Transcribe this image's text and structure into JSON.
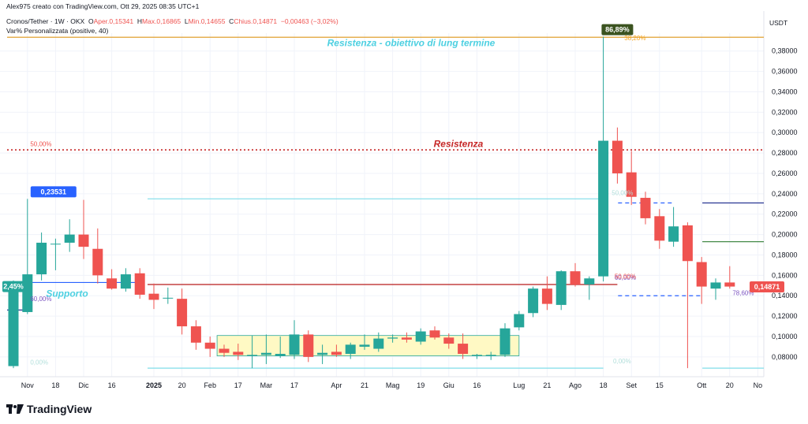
{
  "header": {
    "author": "Alex975 creato con TradingView.com, Ott 29, 2025 08:35 UTC+1",
    "symbol": "Cronos/Tether · 1W · OKX",
    "open_label": "O",
    "open_value": "Aper.0,15341",
    "high_label": "H",
    "high_value": "Max.0,16865",
    "low_label": "L",
    "low_value": "Min.0,14655",
    "close_label": "C",
    "close_value": "Chius.0,14871",
    "change_value": "−0,00463 (−3,02%)",
    "indicator": "Var% Personalizzata (positive, 40)"
  },
  "currency": "USDT",
  "brand": {
    "name": "TradingView"
  },
  "colors": {
    "up": "#26a69a",
    "down": "#ef5350",
    "grid": "#f0f3fa",
    "axis": "#131722"
  },
  "chart_data": {
    "type": "candlestick",
    "y_ticks": [
      "0,08000",
      "0,10000",
      "0,12000",
      "0,14000",
      "0,16000",
      "0,18000",
      "0,20000",
      "0,22000",
      "0,24000",
      "0,26000",
      "0,28000",
      "0,30000",
      "0,32000",
      "0,34000",
      "0,36000",
      "0,38000"
    ],
    "y_tick_values": [
      0.08,
      0.1,
      0.12,
      0.14,
      0.16,
      0.18,
      0.2,
      0.22,
      0.24,
      0.26,
      0.28,
      0.3,
      0.32,
      0.34,
      0.36,
      0.38
    ],
    "ylim": [
      0.066,
      0.396
    ],
    "x_labels": [
      {
        "i": 1,
        "t": "Nov"
      },
      {
        "i": 3,
        "t": "18"
      },
      {
        "i": 5,
        "t": "Dic"
      },
      {
        "i": 7,
        "t": "16"
      },
      {
        "i": 10,
        "t": "2025"
      },
      {
        "i": 12,
        "t": "20"
      },
      {
        "i": 14,
        "t": "Feb"
      },
      {
        "i": 16,
        "t": "17"
      },
      {
        "i": 18,
        "t": "Mar"
      },
      {
        "i": 20,
        "t": "17"
      },
      {
        "i": 23,
        "t": "Apr"
      },
      {
        "i": 25,
        "t": "21"
      },
      {
        "i": 27,
        "t": "Mag"
      },
      {
        "i": 29,
        "t": "19"
      },
      {
        "i": 31,
        "t": "Giu"
      },
      {
        "i": 33,
        "t": "16"
      },
      {
        "i": 36,
        "t": "Lug"
      },
      {
        "i": 38,
        "t": "21"
      },
      {
        "i": 40,
        "t": "Ago"
      },
      {
        "i": 42,
        "t": "18"
      },
      {
        "i": 44,
        "t": "Set"
      },
      {
        "i": 46,
        "t": "15"
      },
      {
        "i": 49,
        "t": "Ott"
      },
      {
        "i": 51,
        "t": "20"
      },
      {
        "i": 53,
        "t": "No"
      }
    ],
    "candles": [
      {
        "o": 0.071,
        "h": 0.155,
        "l": 0.069,
        "c": 0.146
      },
      {
        "o": 0.124,
        "h": 0.235,
        "l": 0.122,
        "c": 0.161
      },
      {
        "o": 0.161,
        "h": 0.202,
        "l": 0.155,
        "c": 0.192
      },
      {
        "o": 0.191,
        "h": 0.196,
        "l": 0.165,
        "c": 0.191
      },
      {
        "o": 0.192,
        "h": 0.215,
        "l": 0.183,
        "c": 0.2
      },
      {
        "o": 0.2,
        "h": 0.234,
        "l": 0.176,
        "c": 0.188
      },
      {
        "o": 0.186,
        "h": 0.206,
        "l": 0.152,
        "c": 0.16
      },
      {
        "o": 0.157,
        "h": 0.166,
        "l": 0.146,
        "c": 0.147
      },
      {
        "o": 0.147,
        "h": 0.167,
        "l": 0.144,
        "c": 0.161
      },
      {
        "o": 0.162,
        "h": 0.167,
        "l": 0.137,
        "c": 0.141
      },
      {
        "o": 0.142,
        "h": 0.152,
        "l": 0.127,
        "c": 0.136
      },
      {
        "o": 0.138,
        "h": 0.148,
        "l": 0.132,
        "c": 0.138
      },
      {
        "o": 0.137,
        "h": 0.147,
        "l": 0.102,
        "c": 0.11
      },
      {
        "o": 0.11,
        "h": 0.116,
        "l": 0.087,
        "c": 0.094
      },
      {
        "o": 0.094,
        "h": 0.1,
        "l": 0.08,
        "c": 0.088
      },
      {
        "o": 0.088,
        "h": 0.092,
        "l": 0.08,
        "c": 0.084
      },
      {
        "o": 0.085,
        "h": 0.093,
        "l": 0.077,
        "c": 0.082
      },
      {
        "o": 0.081,
        "h": 0.101,
        "l": 0.069,
        "c": 0.082
      },
      {
        "o": 0.082,
        "h": 0.102,
        "l": 0.073,
        "c": 0.084
      },
      {
        "o": 0.081,
        "h": 0.1,
        "l": 0.079,
        "c": 0.083
      },
      {
        "o": 0.082,
        "h": 0.116,
        "l": 0.078,
        "c": 0.102
      },
      {
        "o": 0.102,
        "h": 0.106,
        "l": 0.075,
        "c": 0.08
      },
      {
        "o": 0.082,
        "h": 0.092,
        "l": 0.073,
        "c": 0.084
      },
      {
        "o": 0.085,
        "h": 0.092,
        "l": 0.08,
        "c": 0.082
      },
      {
        "o": 0.083,
        "h": 0.094,
        "l": 0.078,
        "c": 0.092
      },
      {
        "o": 0.09,
        "h": 0.102,
        "l": 0.087,
        "c": 0.092
      },
      {
        "o": 0.088,
        "h": 0.104,
        "l": 0.085,
        "c": 0.098
      },
      {
        "o": 0.098,
        "h": 0.102,
        "l": 0.094,
        "c": 0.099
      },
      {
        "o": 0.099,
        "h": 0.104,
        "l": 0.094,
        "c": 0.097
      },
      {
        "o": 0.095,
        "h": 0.108,
        "l": 0.092,
        "c": 0.105
      },
      {
        "o": 0.106,
        "h": 0.11,
        "l": 0.097,
        "c": 0.099
      },
      {
        "o": 0.099,
        "h": 0.103,
        "l": 0.088,
        "c": 0.093
      },
      {
        "o": 0.093,
        "h": 0.103,
        "l": 0.078,
        "c": 0.083
      },
      {
        "o": 0.081,
        "h": 0.083,
        "l": 0.078,
        "c": 0.082
      },
      {
        "o": 0.081,
        "h": 0.085,
        "l": 0.077,
        "c": 0.082
      },
      {
        "o": 0.082,
        "h": 0.113,
        "l": 0.08,
        "c": 0.108
      },
      {
        "o": 0.109,
        "h": 0.125,
        "l": 0.106,
        "c": 0.122
      },
      {
        "o": 0.123,
        "h": 0.149,
        "l": 0.119,
        "c": 0.147
      },
      {
        "o": 0.147,
        "h": 0.159,
        "l": 0.126,
        "c": 0.132
      },
      {
        "o": 0.131,
        "h": 0.165,
        "l": 0.126,
        "c": 0.164
      },
      {
        "o": 0.164,
        "h": 0.172,
        "l": 0.149,
        "c": 0.151
      },
      {
        "o": 0.151,
        "h": 0.159,
        "l": 0.136,
        "c": 0.157
      },
      {
        "o": 0.159,
        "h": 0.394,
        "l": 0.154,
        "c": 0.292
      },
      {
        "o": 0.292,
        "h": 0.305,
        "l": 0.25,
        "c": 0.26
      },
      {
        "o": 0.261,
        "h": 0.282,
        "l": 0.229,
        "c": 0.237
      },
      {
        "o": 0.236,
        "h": 0.242,
        "l": 0.21,
        "c": 0.216
      },
      {
        "o": 0.218,
        "h": 0.225,
        "l": 0.186,
        "c": 0.194
      },
      {
        "o": 0.193,
        "h": 0.227,
        "l": 0.188,
        "c": 0.208
      },
      {
        "o": 0.209,
        "h": 0.212,
        "l": 0.069,
        "c": 0.174
      },
      {
        "o": 0.173,
        "h": 0.178,
        "l": 0.132,
        "c": 0.149
      },
      {
        "o": 0.147,
        "h": 0.157,
        "l": 0.136,
        "c": 0.153
      },
      {
        "o": 0.153,
        "h": 0.169,
        "l": 0.147,
        "c": 0.149
      }
    ],
    "price_labels": [
      {
        "text": "0,23531",
        "i": 1,
        "y": 0.235,
        "color": "#2962ff"
      },
      {
        "text": "86,89%",
        "i": 43,
        "y": 0.394,
        "color": "#3b5320"
      },
      {
        "text": "2,45%",
        "i": 0,
        "y": 0.149,
        "color": "#26a69a"
      },
      {
        "text": "0,14871",
        "i": 53,
        "y": 0.1487,
        "color": "#ef5350"
      }
    ],
    "annotations": [
      {
        "text": "Resistenza - obiettivo di lung termine",
        "y": 0.388,
        "color": "#4dd0e1",
        "italic": true
      },
      {
        "text": "Resistenza",
        "y": 0.289,
        "color": "#c62828",
        "italic": true
      },
      {
        "text": "Supporto",
        "y": 0.142,
        "color": "#4dd0e1",
        "italic": true
      }
    ],
    "pct_labels": [
      {
        "text": "38,20%",
        "y": 0.393,
        "color": "#f5a623"
      },
      {
        "text": "50,00%",
        "y": 0.289,
        "color": "#ef5350"
      },
      {
        "text": "60,00%",
        "y": 0.137,
        "color": "#7e57c2"
      },
      {
        "text": "0,00%",
        "y": 0.075,
        "color": "#b2dfdb"
      },
      {
        "text": "0,00%",
        "y": 0.076,
        "color": "#b2dfdb"
      },
      {
        "text": "60,00%",
        "y": 0.158,
        "color": "#7e57c2"
      },
      {
        "text": "50,00%",
        "y": 0.159,
        "color": "#ef5350"
      },
      {
        "text": "50,00%",
        "y": 0.241,
        "color": "#b2dfdb"
      },
      {
        "text": "78,60%",
        "y": 0.143,
        "color": "#7e57c2"
      }
    ],
    "h_levels": [
      {
        "y": 0.3935,
        "from": 0,
        "to": 53.6,
        "color": "#e0a030",
        "style": "solid"
      },
      {
        "y": 0.283,
        "from": 0,
        "to": 53.6,
        "color": "#c62828",
        "style": "dotted"
      },
      {
        "y": 0.153,
        "from": 0,
        "to": 9,
        "color": "#2962ff",
        "style": "solid"
      },
      {
        "y": 0.151,
        "from": 10,
        "to": 43,
        "color": "#b71c1c",
        "style": "solid"
      },
      {
        "y": 0.235,
        "from": 10,
        "to": 42,
        "color": "#80deea",
        "style": "solid"
      },
      {
        "y": 0.069,
        "from": 10,
        "to": 42,
        "color": "#80deea",
        "style": "solid"
      },
      {
        "y": 0.231,
        "from": 43.5,
        "to": 47,
        "color": "#2962ff",
        "style": "dashed"
      },
      {
        "y": 0.14,
        "from": 43.5,
        "to": 49,
        "color": "#2962ff",
        "style": "dashed"
      },
      {
        "y": 0.231,
        "from": 49.5,
        "to": 53.6,
        "color": "#283593",
        "style": "solid"
      },
      {
        "y": 0.193,
        "from": 49.5,
        "to": 53.6,
        "color": "#2e7d32",
        "style": "solid"
      },
      {
        "y": 0.069,
        "from": 49.5,
        "to": 53.6,
        "color": "#80deea",
        "style": "solid"
      },
      {
        "y": 0.126,
        "from": 0,
        "to": 1,
        "color": "#283593",
        "style": "solid"
      }
    ],
    "box": {
      "from": 14.5,
      "to": 36,
      "y0": 0.081,
      "y1": 0.101,
      "fill": "#fff9c4",
      "stroke": "#26a69a"
    }
  }
}
